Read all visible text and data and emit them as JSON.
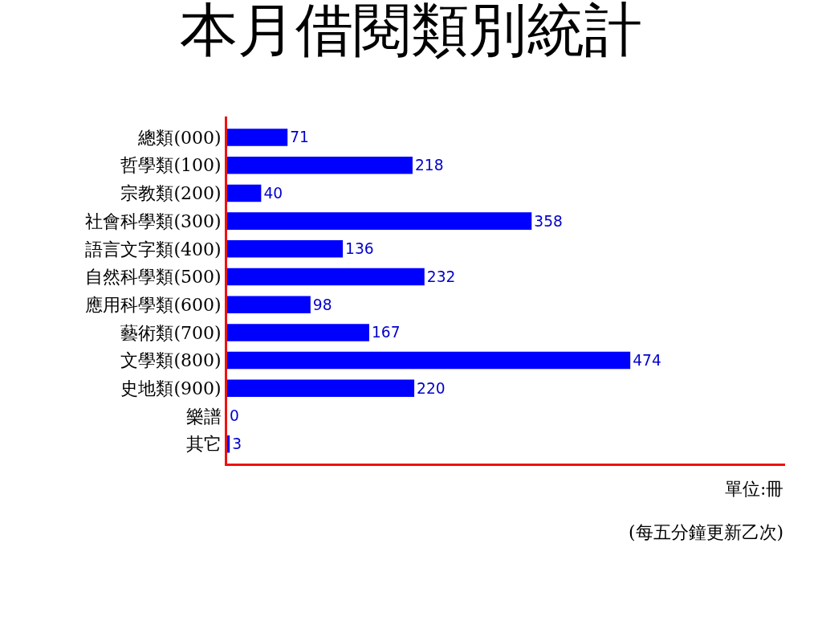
{
  "chart_data": {
    "type": "bar",
    "orientation": "horizontal",
    "title": "本月借閱類別統計",
    "categories": [
      "總類(000)",
      "哲學類(100)",
      "宗教類(200)",
      "社會科學類(300)",
      "語言文字類(400)",
      "自然科學類(500)",
      "應用科學類(600)",
      "藝術類(700)",
      "文學類(800)",
      "史地類(900)",
      "樂譜",
      "其它"
    ],
    "values": [
      71,
      218,
      40,
      358,
      136,
      232,
      98,
      167,
      474,
      220,
      0,
      3
    ],
    "color": "#0000ff",
    "xlim": [
      0,
      656
    ],
    "data_labels": true,
    "tick_labels": "y",
    "legend": false,
    "annotations": [
      "單位:冊",
      "(每五分鐘更新乙次)"
    ]
  }
}
